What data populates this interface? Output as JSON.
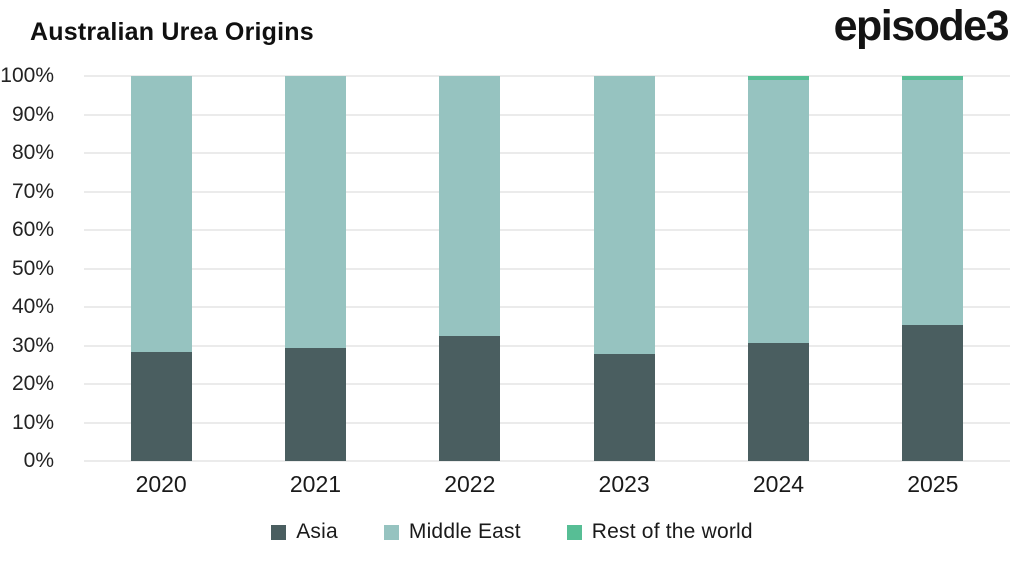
{
  "header": {
    "title": "Australian Urea Origins",
    "logo": "episode3"
  },
  "chart_data": {
    "type": "bar",
    "stacked": true,
    "title": "Australian Urea Origins",
    "xlabel": "",
    "ylabel": "",
    "ylim": [
      0,
      100
    ],
    "grid": true,
    "legend_position": "bottom",
    "categories": [
      "2020",
      "2021",
      "2022",
      "2023",
      "2024",
      "2025"
    ],
    "yticks": [
      "0%",
      "10%",
      "20%",
      "30%",
      "40%",
      "50%",
      "60%",
      "70%",
      "80%",
      "90%",
      "100%"
    ],
    "series": [
      {
        "name": "Asia",
        "color": "#4a5e60",
        "values": [
          28.3,
          29.3,
          32.4,
          27.7,
          30.7,
          35.3
        ]
      },
      {
        "name": "Middle East",
        "color": "#96c3c0",
        "values": [
          71.7,
          70.7,
          67.6,
          72.3,
          68.3,
          63.7
        ]
      },
      {
        "name": "Rest of the world",
        "color": "#57be95",
        "values": [
          0,
          0,
          0,
          0,
          1.0,
          1.0
        ]
      }
    ]
  },
  "colors": {
    "gridline": "#ebebeb",
    "text": "#1a1a1a"
  }
}
